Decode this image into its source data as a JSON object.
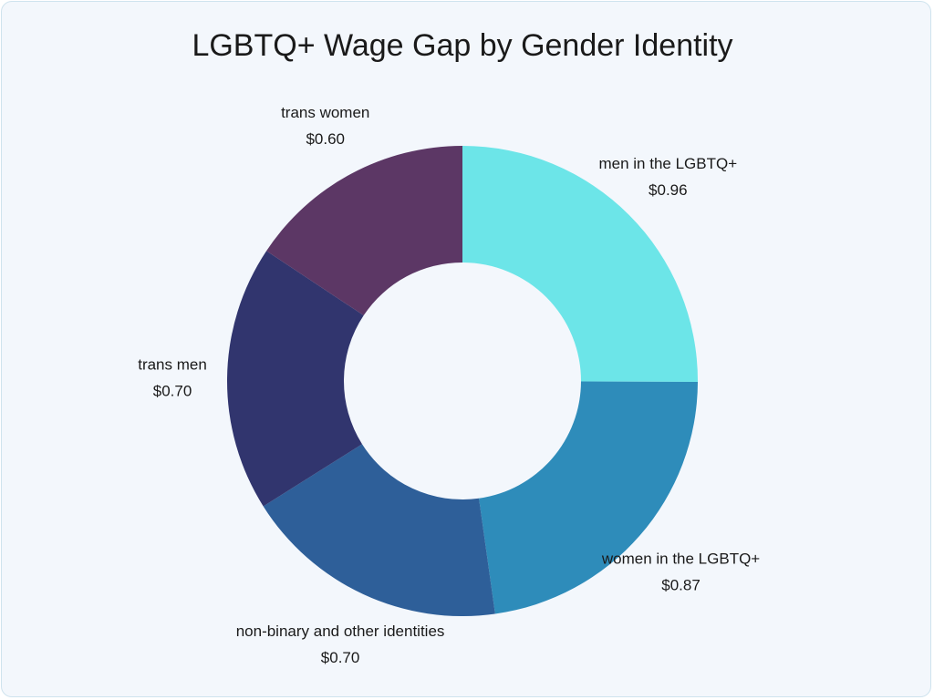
{
  "chart_data": {
    "type": "donut",
    "title": "LGBTQ+ Wage Gap by Gender Identity",
    "categories": [
      "men in the LGBTQ+",
      "women in the LGBTQ+",
      "non-binary and other identities",
      "trans men",
      "trans women"
    ],
    "values": [
      0.96,
      0.87,
      0.7,
      0.7,
      0.6
    ],
    "value_labels": [
      "$0.96",
      "$0.87",
      "$0.70",
      "$0.70",
      "$0.60"
    ],
    "colors": [
      "#6ce5e8",
      "#2e8cba",
      "#2e5f99",
      "#31356e",
      "#5c3765"
    ]
  }
}
